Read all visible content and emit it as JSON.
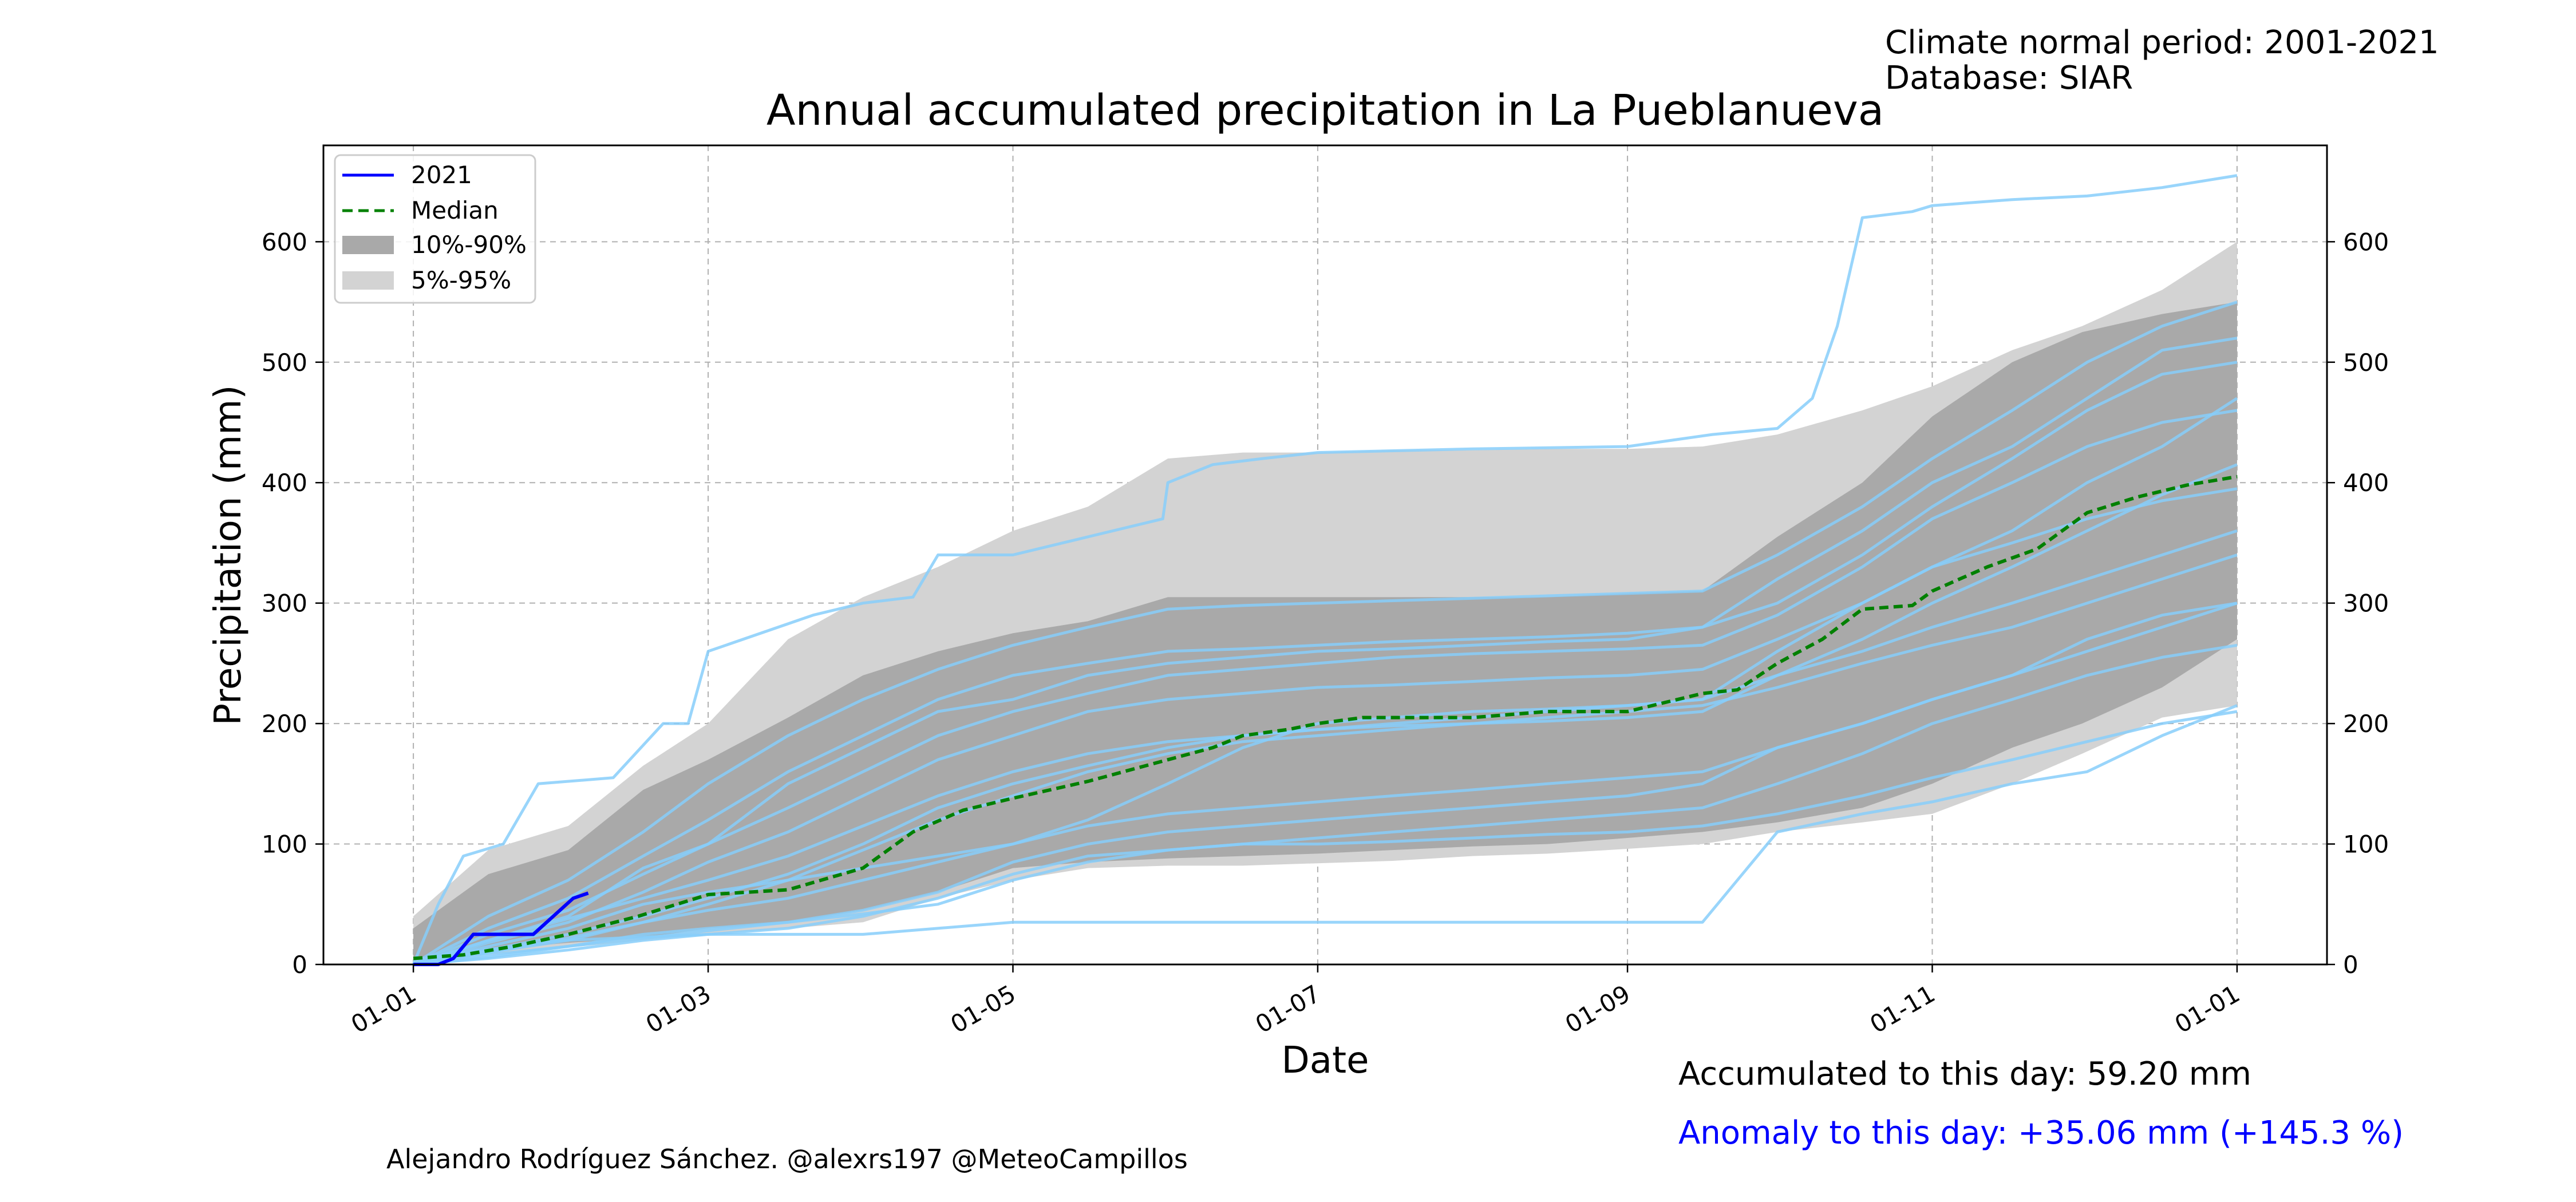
{
  "header": {
    "normal_period": "Climate normal period: 2001-2021",
    "database": "Database: SIAR"
  },
  "footer": {
    "author": "Alejandro Rodríguez Sánchez. @alexrs197 @MeteoCampillos",
    "accumulated": "Accumulated to this day: 59.20 mm",
    "anomaly": "Anomaly to this day: +35.06 mm (+145.3 %)"
  },
  "colors": {
    "current_year": "#0000ff",
    "median": "#008000",
    "band_10_90": "#a9a9a9",
    "band_5_95": "#d3d3d3",
    "historical_years": "#87cefa",
    "anomaly_text": "#0000ff"
  },
  "chart_data": {
    "type": "line",
    "title": "Annual accumulated precipitation in La Pueblanueva",
    "xlabel": "Date",
    "ylabel": "Precipitation (mm)",
    "x_ticks": [
      "01-01",
      "01-03",
      "01-05",
      "01-07",
      "01-09",
      "01-11",
      "01-01"
    ],
    "y_ticks": [
      0,
      100,
      200,
      300,
      400,
      500,
      600
    ],
    "ylim": [
      0,
      680
    ],
    "xlim_days": [
      -18,
      383
    ],
    "grid": true,
    "legend_position": "top-left",
    "legend": [
      {
        "label": "2021",
        "style": "solid",
        "color": "#0000ff"
      },
      {
        "label": "Median",
        "style": "dashed",
        "color": "#008000"
      },
      {
        "label": "10%-90%",
        "style": "fill",
        "color": "#a9a9a9"
      },
      {
        "label": "5%-95%",
        "style": "fill",
        "color": "#d3d3d3"
      }
    ],
    "bands": {
      "p5_p95": {
        "x": [
          0,
          15,
          31,
          46,
          59,
          75,
          90,
          105,
          120,
          135,
          151,
          166,
          181,
          196,
          212,
          227,
          243,
          258,
          273,
          290,
          304,
          320,
          334,
          350,
          365
        ],
        "lower": [
          0,
          8,
          14,
          20,
          25,
          30,
          35,
          55,
          70,
          80,
          82,
          82,
          84,
          86,
          90,
          92,
          96,
          100,
          110,
          118,
          125,
          150,
          175,
          205,
          215
        ],
        "upper": [
          40,
          95,
          115,
          165,
          200,
          270,
          305,
          330,
          360,
          380,
          420,
          425,
          425,
          427,
          427,
          428,
          428,
          430,
          440,
          460,
          480,
          510,
          530,
          560,
          600
        ]
      },
      "p10_p90": {
        "x": [
          0,
          15,
          31,
          46,
          59,
          75,
          90,
          105,
          120,
          135,
          151,
          166,
          181,
          196,
          212,
          227,
          243,
          258,
          273,
          290,
          304,
          320,
          334,
          350,
          365
        ],
        "lower": [
          5,
          12,
          18,
          22,
          30,
          35,
          45,
          60,
          80,
          85,
          88,
          90,
          92,
          95,
          98,
          100,
          105,
          110,
          118,
          130,
          150,
          180,
          200,
          230,
          270
        ],
        "upper": [
          30,
          75,
          95,
          145,
          170,
          205,
          240,
          260,
          275,
          285,
          305,
          305,
          305,
          305,
          305,
          305,
          308,
          310,
          355,
          400,
          455,
          500,
          525,
          540,
          550
        ]
      }
    },
    "series": [
      {
        "name": "Median",
        "x": [
          0,
          10,
          20,
          31,
          45,
          59,
          75,
          90,
          100,
          110,
          120,
          135,
          151,
          160,
          166,
          175,
          181,
          190,
          196,
          205,
          212,
          227,
          243,
          258,
          265,
          273,
          282,
          290,
          300,
          304,
          315,
          325,
          335,
          345,
          355,
          365
        ],
        "y": [
          5,
          8,
          15,
          25,
          40,
          58,
          62,
          80,
          110,
          128,
          138,
          152,
          170,
          180,
          190,
          195,
          200,
          205,
          205,
          205,
          205,
          210,
          210,
          225,
          228,
          250,
          270,
          295,
          298,
          310,
          330,
          345,
          375,
          388,
          398,
          405
        ]
      },
      {
        "name": "2021",
        "x": [
          0,
          5,
          8,
          12,
          18,
          24,
          28,
          32,
          35
        ],
        "y": [
          0,
          0,
          5,
          25,
          25,
          25,
          40,
          55,
          59.2
        ]
      }
    ],
    "historical_years": [
      {
        "x": [
          0,
          5,
          10,
          18,
          25,
          40,
          50,
          55,
          59,
          80,
          90,
          100,
          105,
          120,
          135,
          150,
          151,
          160,
          170,
          181,
          212,
          243,
          260,
          273,
          280,
          285,
          290,
          300,
          304,
          320,
          335,
          350,
          365
        ],
        "y": [
          0,
          50,
          90,
          100,
          150,
          155,
          200,
          200,
          260,
          290,
          300,
          305,
          340,
          340,
          355,
          370,
          400,
          415,
          420,
          425,
          428,
          430,
          440,
          445,
          470,
          530,
          620,
          625,
          630,
          635,
          638,
          645,
          655
        ]
      },
      {
        "x": [
          0,
          10,
          30,
          59,
          75,
          90,
          120,
          151,
          181,
          212,
          243,
          258,
          273,
          290,
          304,
          320,
          335,
          350,
          365
        ],
        "y": [
          0,
          10,
          20,
          25,
          25,
          25,
          35,
          35,
          35,
          35,
          35,
          35,
          110,
          125,
          135,
          150,
          160,
          190,
          215
        ]
      },
      {
        "x": [
          0,
          15,
          31,
          46,
          59,
          75,
          90,
          105,
          120,
          135,
          151,
          166,
          181,
          196,
          212,
          227,
          243,
          258,
          273,
          290,
          304,
          320,
          335,
          350,
          365
        ],
        "y": [
          0,
          20,
          40,
          80,
          100,
          150,
          180,
          210,
          220,
          240,
          250,
          255,
          260,
          262,
          265,
          268,
          270,
          280,
          320,
          360,
          400,
          430,
          470,
          510,
          520
        ]
      },
      {
        "x": [
          0,
          15,
          31,
          46,
          59,
          75,
          90,
          105,
          120,
          135,
          151,
          166,
          181,
          196,
          212,
          227,
          243,
          258,
          273,
          290,
          304,
          320,
          335,
          350,
          365
        ],
        "y": [
          0,
          15,
          30,
          50,
          60,
          70,
          80,
          90,
          100,
          120,
          150,
          180,
          200,
          205,
          210,
          212,
          215,
          220,
          260,
          300,
          330,
          360,
          400,
          430,
          470
        ]
      },
      {
        "x": [
          0,
          15,
          31,
          46,
          59,
          75,
          90,
          105,
          120,
          135,
          151,
          166,
          181,
          196,
          212,
          227,
          243,
          258,
          273,
          290,
          304,
          320,
          335,
          350,
          365
        ],
        "y": [
          0,
          8,
          15,
          25,
          30,
          35,
          45,
          60,
          85,
          100,
          110,
          115,
          120,
          125,
          130,
          135,
          140,
          150,
          180,
          200,
          220,
          240,
          270,
          290,
          300
        ]
      },
      {
        "x": [
          0,
          15,
          31,
          46,
          59,
          75,
          90,
          105,
          120,
          135,
          151,
          166,
          181,
          196,
          212,
          227,
          243,
          258,
          273,
          290,
          304,
          320,
          335,
          350,
          365
        ],
        "y": [
          0,
          30,
          55,
          90,
          120,
          160,
          190,
          220,
          240,
          250,
          260,
          262,
          265,
          268,
          270,
          272,
          275,
          280,
          300,
          340,
          380,
          420,
          460,
          490,
          500
        ]
      },
      {
        "x": [
          0,
          15,
          31,
          46,
          59,
          75,
          90,
          105,
          120,
          135,
          151,
          166,
          181,
          196,
          212,
          227,
          243,
          258,
          273,
          290,
          304,
          320,
          335,
          350,
          365
        ],
        "y": [
          0,
          10,
          20,
          35,
          50,
          70,
          95,
          120,
          140,
          160,
          175,
          185,
          190,
          195,
          200,
          205,
          210,
          215,
          230,
          250,
          265,
          280,
          300,
          320,
          340
        ]
      },
      {
        "x": [
          0,
          15,
          31,
          46,
          59,
          75,
          90,
          105,
          120,
          135,
          151,
          166,
          181,
          196,
          212,
          227,
          243,
          258,
          273,
          290,
          304,
          320,
          335,
          350,
          365
        ],
        "y": [
          0,
          5,
          12,
          20,
          25,
          30,
          40,
          55,
          75,
          90,
          95,
          100,
          100,
          102,
          105,
          108,
          110,
          115,
          125,
          140,
          155,
          170,
          185,
          200,
          210
        ]
      },
      {
        "x": [
          0,
          15,
          31,
          46,
          59,
          75,
          90,
          105,
          120,
          135,
          151,
          166,
          181,
          196,
          212,
          227,
          243,
          258,
          273,
          290,
          304,
          320,
          335,
          350,
          365
        ],
        "y": [
          0,
          25,
          45,
          75,
          100,
          130,
          160,
          190,
          210,
          225,
          240,
          245,
          250,
          255,
          258,
          260,
          262,
          265,
          290,
          330,
          370,
          400,
          430,
          450,
          460
        ]
      },
      {
        "x": [
          0,
          15,
          31,
          46,
          59,
          75,
          90,
          105,
          120,
          135,
          151,
          166,
          181,
          196,
          212,
          227,
          243,
          258,
          273,
          290,
          304,
          320,
          335,
          350,
          365
        ],
        "y": [
          0,
          12,
          25,
          40,
          55,
          75,
          100,
          130,
          150,
          165,
          180,
          190,
          195,
          198,
          200,
          202,
          205,
          210,
          240,
          270,
          300,
          330,
          360,
          390,
          415
        ]
      },
      {
        "x": [
          0,
          15,
          31,
          46,
          59,
          75,
          90,
          105,
          120,
          135,
          151,
          166,
          181,
          196,
          212,
          227,
          243,
          258,
          273,
          290,
          304,
          320,
          335,
          350,
          365
        ],
        "y": [
          0,
          18,
          35,
          60,
          85,
          110,
          140,
          170,
          190,
          210,
          220,
          225,
          230,
          232,
          235,
          238,
          240,
          245,
          270,
          300,
          330,
          350,
          370,
          385,
          395
        ]
      },
      {
        "x": [
          0,
          15,
          31,
          46,
          59,
          75,
          90,
          105,
          120,
          135,
          151,
          166,
          181,
          196,
          212,
          227,
          243,
          258,
          273,
          290,
          304,
          320,
          335,
          350,
          365
        ],
        "y": [
          0,
          6,
          15,
          22,
          28,
          35,
          42,
          50,
          70,
          85,
          95,
          100,
          105,
          110,
          115,
          120,
          125,
          130,
          150,
          175,
          200,
          220,
          240,
          255,
          265
        ]
      },
      {
        "x": [
          0,
          15,
          31,
          46,
          59,
          75,
          90,
          105,
          120,
          135,
          151,
          166,
          181,
          196,
          212,
          227,
          243,
          258,
          273,
          290,
          304,
          320,
          335,
          350,
          365
        ],
        "y": [
          0,
          40,
          70,
          110,
          150,
          190,
          220,
          245,
          265,
          280,
          295,
          298,
          300,
          302,
          304,
          306,
          308,
          310,
          340,
          380,
          420,
          460,
          500,
          530,
          550
        ]
      },
      {
        "x": [
          0,
          15,
          31,
          46,
          59,
          75,
          90,
          105,
          120,
          135,
          151,
          166,
          181,
          196,
          212,
          227,
          243,
          258,
          273,
          290,
          304,
          320,
          335,
          350,
          365
        ],
        "y": [
          0,
          20,
          38,
          55,
          70,
          90,
          115,
          140,
          160,
          175,
          185,
          190,
          195,
          200,
          205,
          210,
          215,
          220,
          240,
          260,
          280,
          300,
          320,
          340,
          360
        ]
      },
      {
        "x": [
          0,
          15,
          31,
          46,
          59,
          75,
          90,
          105,
          120,
          135,
          151,
          166,
          181,
          196,
          212,
          227,
          243,
          258,
          273,
          290,
          304,
          320,
          335,
          350,
          365
        ],
        "y": [
          0,
          10,
          22,
          35,
          45,
          55,
          70,
          85,
          100,
          115,
          125,
          130,
          135,
          140,
          145,
          150,
          155,
          160,
          180,
          200,
          220,
          240,
          260,
          280,
          300
        ]
      }
    ],
    "annotations": [
      "Climate normal period: 2001-2021",
      "Database: SIAR",
      "Accumulated to this day: 59.20 mm",
      "Anomaly to this day: +35.06 mm (+145.3 %)",
      "Alejandro Rodríguez Sánchez. @alexrs197 @MeteoCampillos"
    ]
  }
}
